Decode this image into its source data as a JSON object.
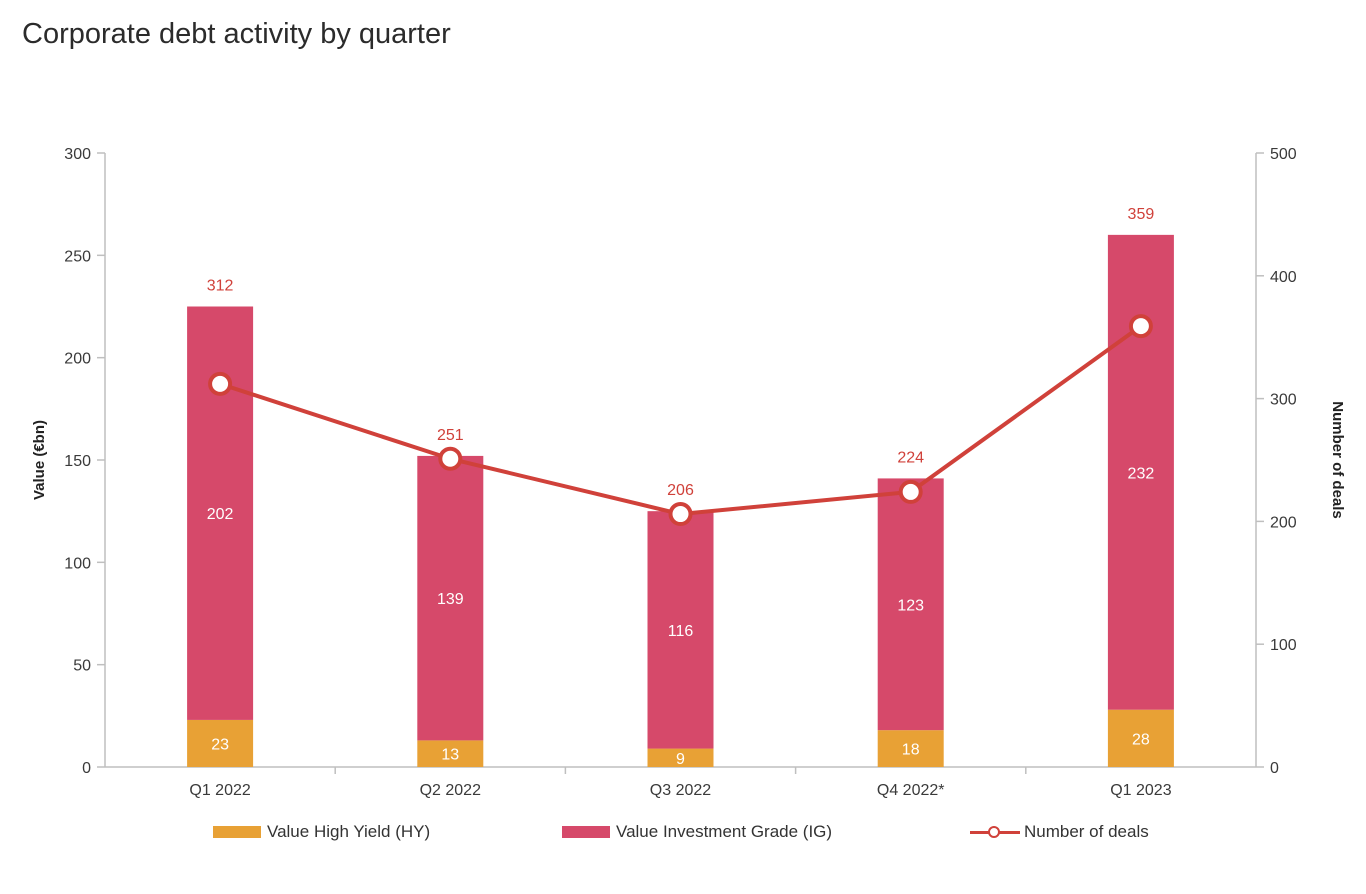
{
  "chart_data": {
    "type": "bar",
    "stacked": true,
    "title": "Corporate debt activity by quarter",
    "categories": [
      "Q1 2022",
      "Q2 2022",
      "Q3 2022",
      "Q4 2022*",
      "Q1 2023"
    ],
    "ylabel": "Value (€bn)",
    "y2label": "Number of deals",
    "ylim": [
      0,
      300
    ],
    "y2lim": [
      0,
      500
    ],
    "yticks": [
      "0",
      "50",
      "100",
      "150",
      "200",
      "250",
      "300"
    ],
    "y2ticks": [
      "0",
      "100",
      "200",
      "300",
      "400",
      "500"
    ],
    "grid": false,
    "legend_position": "bottom",
    "series": [
      {
        "name": "Value High Yield (HY)",
        "type": "bar",
        "axis": "left",
        "color": "#e8a135",
        "values": [
          23,
          13,
          9,
          18,
          28
        ],
        "labels": [
          "23",
          "13",
          "9",
          "18",
          "28"
        ]
      },
      {
        "name": "Value Investment Grade (IG)",
        "type": "bar",
        "axis": "left",
        "color": "#d6496a",
        "values": [
          202,
          139,
          116,
          123,
          232
        ],
        "labels": [
          "202",
          "139",
          "116",
          "123",
          "232"
        ]
      },
      {
        "name": "Number of deals",
        "type": "line",
        "axis": "right",
        "color": "#d0413a",
        "values": [
          312,
          251,
          206,
          224,
          359
        ],
        "labels": [
          "312",
          "251",
          "206",
          "224",
          "359"
        ]
      }
    ]
  }
}
